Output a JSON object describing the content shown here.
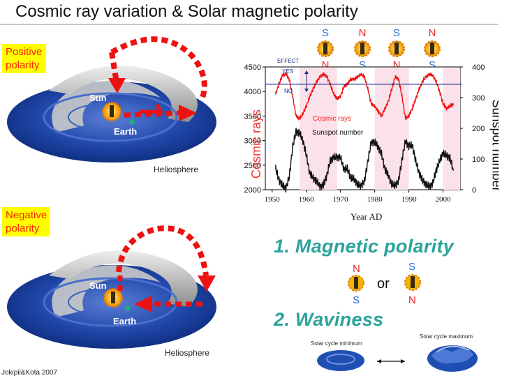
{
  "title": "Cosmic ray variation & Solar magnetic polarity",
  "panels": {
    "positive": {
      "label_line1": "Positive",
      "label_line2": "polarity",
      "sun": "Sun",
      "earth": "Earth",
      "helio": "Heliosphere"
    },
    "negative": {
      "label_line1": "Negative",
      "label_line2": "polarity",
      "sun": "Sun",
      "earth": "Earth",
      "helio": "Heliosphere"
    }
  },
  "top_polarity": [
    {
      "top": "S",
      "bottom": "N"
    },
    {
      "top": "N",
      "bottom": "S"
    },
    {
      "top": "S",
      "bottom": "N"
    },
    {
      "top": "N",
      "bottom": "S"
    }
  ],
  "chart_data": {
    "type": "line",
    "title": "",
    "xlabel": "Year AD",
    "ylabel_left": "Cosmic rays",
    "ylabel_right": "Sunspot number",
    "xlim": [
      1948,
      2005
    ],
    "ylim_left": [
      2000,
      4500
    ],
    "ylim_right": [
      0,
      400
    ],
    "x_ticks": [
      "1950",
      "1960",
      "1970",
      "1980",
      "1990",
      "2000"
    ],
    "y_ticks_left": [
      "2000",
      "2500",
      "3000",
      "3500",
      "4000",
      "4500"
    ],
    "y_ticks_right": [
      "0",
      "100",
      "200",
      "300",
      "400"
    ],
    "annotations": {
      "effect": "EFFECT",
      "yes": "YES",
      "no": "NO"
    },
    "reference_line_cosmic": 4150,
    "series": [
      {
        "name": "Cosmic rays",
        "axis": "left",
        "color": "#ee1111",
        "x": [
          1951,
          1952,
          1953,
          1954,
          1955,
          1956,
          1957,
          1958,
          1959,
          1960,
          1961,
          1962,
          1963,
          1964,
          1965,
          1966,
          1967,
          1968,
          1969,
          1970,
          1971,
          1972,
          1973,
          1974,
          1975,
          1976,
          1977,
          1978,
          1979,
          1980,
          1981,
          1982,
          1983,
          1984,
          1985,
          1986,
          1987,
          1988,
          1989,
          1990,
          1991,
          1992,
          1993,
          1994,
          1995,
          1996,
          1997,
          1998,
          1999,
          2000,
          2001,
          2002,
          2003
        ],
        "y": [
          3950,
          4150,
          4330,
          4360,
          4250,
          3900,
          3500,
          3450,
          3550,
          3700,
          3900,
          4050,
          4200,
          4300,
          4350,
          4300,
          4150,
          3950,
          3850,
          3900,
          4100,
          4150,
          4250,
          4250,
          4300,
          4350,
          4300,
          4050,
          3750,
          3700,
          3600,
          3500,
          3650,
          3800,
          4050,
          4300,
          4250,
          3900,
          3450,
          3500,
          3650,
          3850,
          4050,
          4200,
          4300,
          4350,
          4330,
          4200,
          4000,
          3750,
          3650,
          3700,
          3750
        ]
      },
      {
        "name": "Sunspot number",
        "axis": "right",
        "color": "#111111",
        "x": [
          1951,
          1952,
          1953,
          1954,
          1955,
          1956,
          1957,
          1958,
          1959,
          1960,
          1961,
          1962,
          1963,
          1964,
          1965,
          1966,
          1967,
          1968,
          1969,
          1970,
          1971,
          1972,
          1973,
          1974,
          1975,
          1976,
          1977,
          1978,
          1979,
          1980,
          1981,
          1982,
          1983,
          1984,
          1985,
          1986,
          1987,
          1988,
          1989,
          1990,
          1991,
          1992,
          1993,
          1994,
          1995,
          1996,
          1997,
          1998,
          1999,
          2000,
          2001,
          2002,
          2003
        ],
        "y": [
          70,
          32,
          14,
          5,
          40,
          140,
          190,
          185,
          160,
          112,
          54,
          38,
          28,
          10,
          15,
          47,
          94,
          106,
          106,
          105,
          67,
          69,
          38,
          35,
          16,
          13,
          27,
          93,
          155,
          155,
          140,
          116,
          67,
          46,
          18,
          14,
          29,
          100,
          158,
          142,
          146,
          94,
          55,
          30,
          18,
          9,
          21,
          64,
          93,
          120,
          111,
          104,
          64
        ]
      }
    ]
  },
  "right_text": {
    "heading1": "1. Magnetic polarity",
    "or": "or",
    "pole_n_top": "N",
    "pole_s_bottom": "S",
    "pole_s_top": "S",
    "pole_n_bottom": "N",
    "heading2": "2. Waviness",
    "solar_min": "Solar cycle minimum",
    "solar_max": "Solar cycle maximum"
  },
  "credit": "Jokipii&Kota 2007"
}
